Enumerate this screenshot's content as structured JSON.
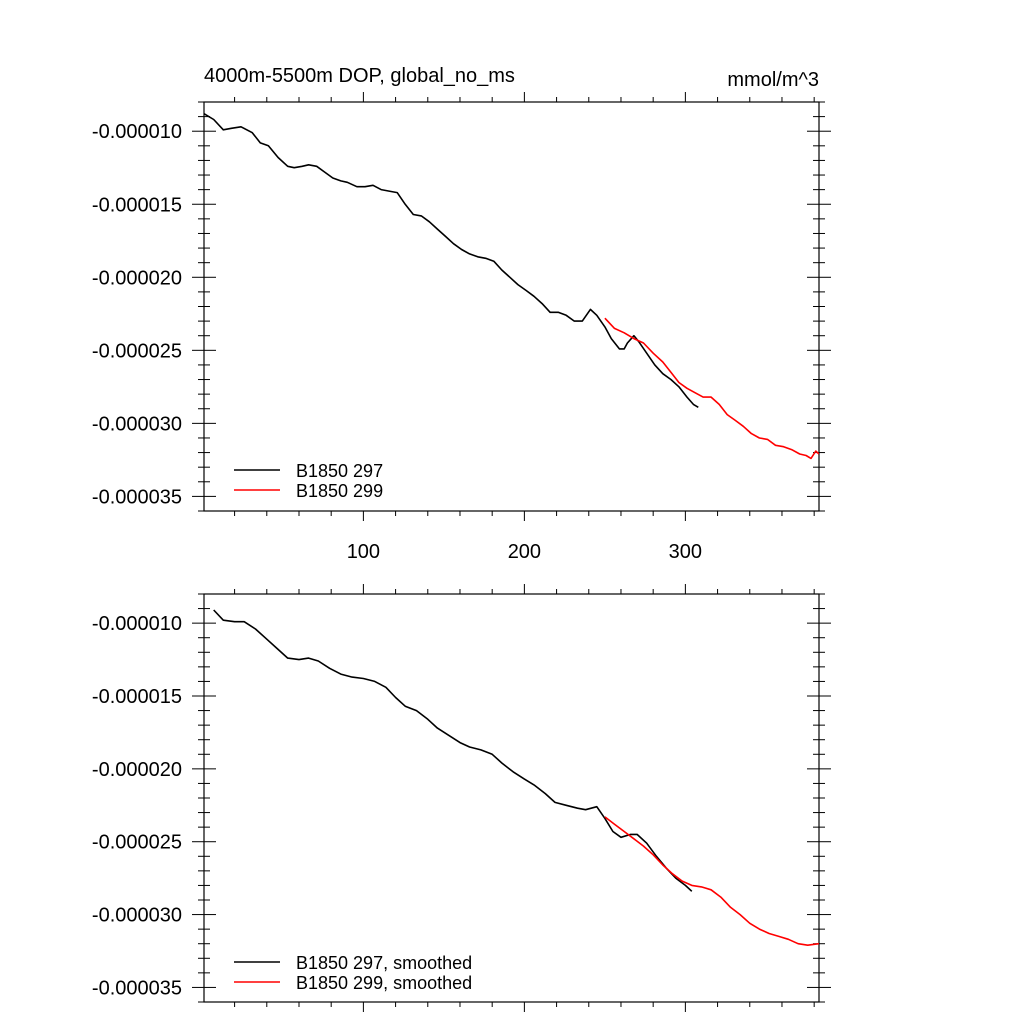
{
  "header": {
    "left_title": "4000m-5500m DOP, global_no_ms",
    "right_title": "mmol/m^3"
  },
  "colors": {
    "series_297": "#000000",
    "series_299": "#ff0000",
    "axes": "#000000"
  },
  "chart_data": [
    {
      "type": "line",
      "title": "4000m-5500m DOP, global_no_ms",
      "units": "mmol/m^3",
      "xlim": [
        1,
        383
      ],
      "ylim": [
        -3.6e-05,
        -8e-06
      ],
      "x_ticks": [
        100,
        200,
        300
      ],
      "x_tick_labels": [
        "100",
        "200",
        "300"
      ],
      "y_ticks": [
        -1e-05,
        -1.5e-05,
        -2e-05,
        -2.5e-05,
        -3e-05,
        -3.5e-05
      ],
      "y_tick_labels": [
        "-0.000010",
        "-0.000015",
        "-0.000020",
        "-0.000025",
        "-0.000030",
        "-0.000035"
      ],
      "legend_position": "bottom-left",
      "series": [
        {
          "name": "B1850 297",
          "color": "#000000",
          "points": [
            [
              1,
              -8.8e-06
            ],
            [
              7,
              -9.2e-06
            ],
            [
              13,
              -9.9e-06
            ],
            [
              18,
              -9.8e-06
            ],
            [
              24,
              -9.7e-06
            ],
            [
              31,
              -1.01e-05
            ],
            [
              36,
              -1.08e-05
            ],
            [
              41,
              -1.1e-05
            ],
            [
              47,
              -1.18e-05
            ],
            [
              53,
              -1.24e-05
            ],
            [
              57,
              -1.25e-05
            ],
            [
              62,
              -1.24e-05
            ],
            [
              66,
              -1.23e-05
            ],
            [
              71,
              -1.24e-05
            ],
            [
              76,
              -1.28e-05
            ],
            [
              81,
              -1.32e-05
            ],
            [
              86,
              -1.34e-05
            ],
            [
              90,
              -1.35e-05
            ],
            [
              96,
              -1.38e-05
            ],
            [
              101,
              -1.38e-05
            ],
            [
              106,
              -1.37e-05
            ],
            [
              111,
              -1.4e-05
            ],
            [
              116,
              -1.41e-05
            ],
            [
              121,
              -1.42e-05
            ],
            [
              126,
              -1.5e-05
            ],
            [
              131,
              -1.57e-05
            ],
            [
              136,
              -1.58e-05
            ],
            [
              141,
              -1.62e-05
            ],
            [
              146,
              -1.67e-05
            ],
            [
              151,
              -1.72e-05
            ],
            [
              156,
              -1.77e-05
            ],
            [
              161,
              -1.81e-05
            ],
            [
              166,
              -1.84e-05
            ],
            [
              171,
              -1.86e-05
            ],
            [
              176,
              -1.87e-05
            ],
            [
              181,
              -1.89e-05
            ],
            [
              186,
              -1.95e-05
            ],
            [
              191,
              -2e-05
            ],
            [
              196,
              -2.05e-05
            ],
            [
              201,
              -2.09e-05
            ],
            [
              206,
              -2.13e-05
            ],
            [
              211,
              -2.18e-05
            ],
            [
              216,
              -2.24e-05
            ],
            [
              221,
              -2.24e-05
            ],
            [
              226,
              -2.26e-05
            ],
            [
              231,
              -2.3e-05
            ],
            [
              236,
              -2.3e-05
            ],
            [
              241,
              -2.22e-05
            ],
            [
              245,
              -2.26e-05
            ],
            [
              250,
              -2.34e-05
            ],
            [
              254,
              -2.42e-05
            ],
            [
              259,
              -2.49e-05
            ],
            [
              262,
              -2.49e-05
            ],
            [
              264,
              -2.45e-05
            ],
            [
              268,
              -2.4e-05
            ],
            [
              271,
              -2.44e-05
            ],
            [
              276,
              -2.52e-05
            ],
            [
              281,
              -2.6e-05
            ],
            [
              286,
              -2.66e-05
            ],
            [
              291,
              -2.7e-05
            ],
            [
              296,
              -2.75e-05
            ],
            [
              301,
              -2.82e-05
            ],
            [
              305,
              -2.87e-05
            ],
            [
              308,
              -2.89e-05
            ]
          ]
        },
        {
          "name": "B1850 299",
          "color": "#ff0000",
          "points": [
            [
              250,
              -2.28e-05
            ],
            [
              256,
              -2.35e-05
            ],
            [
              262,
              -2.38e-05
            ],
            [
              268,
              -2.42e-05
            ],
            [
              274,
              -2.45e-05
            ],
            [
              280,
              -2.52e-05
            ],
            [
              286,
              -2.58e-05
            ],
            [
              291,
              -2.65e-05
            ],
            [
              296,
              -2.72e-05
            ],
            [
              301,
              -2.76e-05
            ],
            [
              306,
              -2.79e-05
            ],
            [
              311,
              -2.82e-05
            ],
            [
              316,
              -2.82e-05
            ],
            [
              321,
              -2.87e-05
            ],
            [
              326,
              -2.94e-05
            ],
            [
              331,
              -2.98e-05
            ],
            [
              336,
              -3.02e-05
            ],
            [
              341,
              -3.07e-05
            ],
            [
              346,
              -3.1e-05
            ],
            [
              351,
              -3.11e-05
            ],
            [
              356,
              -3.15e-05
            ],
            [
              361,
              -3.16e-05
            ],
            [
              366,
              -3.18e-05
            ],
            [
              371,
              -3.21e-05
            ],
            [
              375,
              -3.22e-05
            ],
            [
              378,
              -3.24e-05
            ],
            [
              381,
              -3.19e-05
            ],
            [
              383,
              -3.21e-05
            ]
          ]
        }
      ]
    },
    {
      "type": "line",
      "xlim": [
        1,
        383
      ],
      "ylim": [
        -3.6e-05,
        -8e-06
      ],
      "y_ticks": [
        -1e-05,
        -1.5e-05,
        -2e-05,
        -2.5e-05,
        -3e-05,
        -3.5e-05
      ],
      "y_tick_labels": [
        "-0.000010",
        "-0.000015",
        "-0.000020",
        "-0.000025",
        "-0.000030",
        "-0.000035"
      ],
      "legend_position": "bottom-left",
      "series": [
        {
          "name": "B1850 297, smoothed",
          "color": "#000000",
          "points": [
            [
              7,
              -9.1e-06
            ],
            [
              13,
              -9.8e-06
            ],
            [
              20,
              -9.9e-06
            ],
            [
              26,
              -9.9e-06
            ],
            [
              33,
              -1.04e-05
            ],
            [
              40,
              -1.11e-05
            ],
            [
              46,
              -1.17e-05
            ],
            [
              53,
              -1.24e-05
            ],
            [
              60,
              -1.25e-05
            ],
            [
              66,
              -1.24e-05
            ],
            [
              72,
              -1.26e-05
            ],
            [
              79,
              -1.31e-05
            ],
            [
              86,
              -1.35e-05
            ],
            [
              93,
              -1.37e-05
            ],
            [
              100,
              -1.38e-05
            ],
            [
              107,
              -1.4e-05
            ],
            [
              114,
              -1.44e-05
            ],
            [
              120,
              -1.51e-05
            ],
            [
              126,
              -1.57e-05
            ],
            [
              133,
              -1.6e-05
            ],
            [
              140,
              -1.66e-05
            ],
            [
              146,
              -1.72e-05
            ],
            [
              153,
              -1.77e-05
            ],
            [
              160,
              -1.82e-05
            ],
            [
              166,
              -1.85e-05
            ],
            [
              173,
              -1.87e-05
            ],
            [
              180,
              -1.9e-05
            ],
            [
              186,
              -1.96e-05
            ],
            [
              193,
              -2.02e-05
            ],
            [
              200,
              -2.07e-05
            ],
            [
              206,
              -2.11e-05
            ],
            [
              213,
              -2.17e-05
            ],
            [
              219,
              -2.23e-05
            ],
            [
              226,
              -2.25e-05
            ],
            [
              233,
              -2.27e-05
            ],
            [
              238,
              -2.28e-05
            ],
            [
              245,
              -2.26e-05
            ],
            [
              250,
              -2.34e-05
            ],
            [
              255,
              -2.43e-05
            ],
            [
              260,
              -2.47e-05
            ],
            [
              266,
              -2.45e-05
            ],
            [
              270,
              -2.45e-05
            ],
            [
              276,
              -2.51e-05
            ],
            [
              282,
              -2.6e-05
            ],
            [
              288,
              -2.68e-05
            ],
            [
              294,
              -2.75e-05
            ],
            [
              300,
              -2.8e-05
            ],
            [
              304,
              -2.84e-05
            ]
          ]
        },
        {
          "name": "B1850 299, smoothed",
          "color": "#ff0000",
          "points": [
            [
              250,
              -2.33e-05
            ],
            [
              256,
              -2.38e-05
            ],
            [
              262,
              -2.43e-05
            ],
            [
              268,
              -2.48e-05
            ],
            [
              274,
              -2.53e-05
            ],
            [
              280,
              -2.59e-05
            ],
            [
              286,
              -2.66e-05
            ],
            [
              292,
              -2.72e-05
            ],
            [
              298,
              -2.77e-05
            ],
            [
              304,
              -2.8e-05
            ],
            [
              310,
              -2.81e-05
            ],
            [
              316,
              -2.83e-05
            ],
            [
              322,
              -2.88e-05
            ],
            [
              328,
              -2.95e-05
            ],
            [
              334,
              -3e-05
            ],
            [
              340,
              -3.06e-05
            ],
            [
              346,
              -3.1e-05
            ],
            [
              352,
              -3.13e-05
            ],
            [
              358,
              -3.15e-05
            ],
            [
              364,
              -3.17e-05
            ],
            [
              370,
              -3.2e-05
            ],
            [
              376,
              -3.21e-05
            ],
            [
              383,
              -3.2e-05
            ]
          ]
        }
      ]
    }
  ]
}
